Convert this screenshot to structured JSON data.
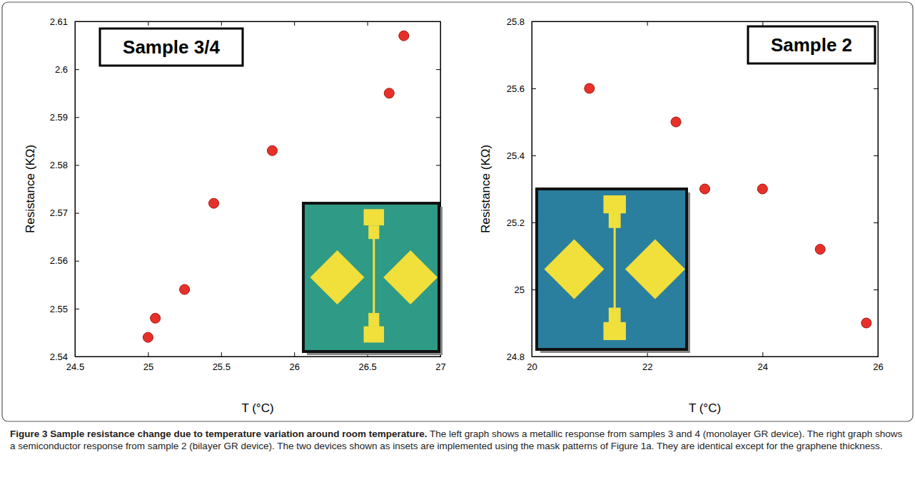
{
  "chart_data": [
    {
      "type": "scatter",
      "title": "Sample 3/4",
      "x_label": "T (°C)",
      "y_label": "Resistance (KΩ)",
      "x": [
        25.0,
        25.05,
        25.25,
        25.45,
        25.85,
        26.65,
        26.75
      ],
      "values": [
        2.544,
        2.548,
        2.554,
        2.572,
        2.583,
        2.595,
        2.607
      ],
      "color": "#e8302a",
      "marker": "circle",
      "xlim": [
        24.5,
        27
      ],
      "xticks": [
        24.5,
        25,
        25.5,
        26,
        26.5,
        27
      ],
      "ylim": [
        2.54,
        2.61
      ],
      "yticks": [
        2.54,
        2.55,
        2.56,
        2.57,
        2.58,
        2.59,
        2.6,
        2.61
      ],
      "grid": false
    },
    {
      "type": "scatter",
      "title": "Sample 2",
      "x_label": "T (°C)",
      "y_label": "Resistance (KΩ)",
      "x": [
        21,
        22.5,
        23,
        24,
        25,
        25.8
      ],
      "values": [
        25.6,
        25.5,
        25.3,
        25.3,
        25.12,
        24.9
      ],
      "color": "#e8302a",
      "marker": "circle",
      "xlim": [
        20,
        26
      ],
      "xticks": [
        20,
        22,
        24,
        26
      ],
      "ylim": [
        24.8,
        25.8
      ],
      "yticks": [
        24.8,
        25,
        25.2,
        25.4,
        25.6,
        25.8
      ],
      "grid": false
    }
  ],
  "caption": {
    "label": "Figure 3",
    "title": "Sample resistance change due to temperature variation around room temperature.",
    "text": "The left graph shows a metallic response from samples 3 and 4 (monolayer GR device). The right graph shows a semiconductor response from sample 2 (bilayer GR device). The two devices shown as insets are implemented using the mask patterns of Figure 1a. They are identical except for the graphene thickness."
  }
}
